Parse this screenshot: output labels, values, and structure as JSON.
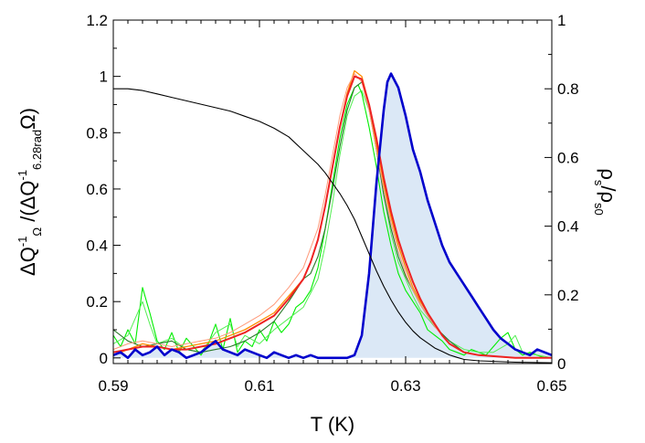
{
  "chart_data": {
    "type": "line",
    "xlabel": "T (K)",
    "ylabel": {
      "parts": [
        {
          "text": "ΔQ",
          "shift": "base"
        },
        {
          "text": "-1",
          "shift": "super"
        },
        {
          "text": "Ω",
          "shift": "sub"
        },
        {
          "text": " /(ΔQ",
          "shift": "base"
        },
        {
          "text": "-1",
          "shift": "super"
        },
        {
          "text": "6.28rad",
          "shift": "sub"
        },
        {
          "text": "Ω)",
          "shift": "base"
        }
      ]
    },
    "y2label": {
      "parts": [
        {
          "text": "ρ",
          "shift": "base"
        },
        {
          "text": "s",
          "shift": "sub"
        },
        {
          "text": "/ρ",
          "shift": "base"
        },
        {
          "text": "s0",
          "shift": "sub"
        }
      ]
    },
    "xlim": [
      0.59,
      0.65
    ],
    "ylim": [
      -0.02,
      1.2
    ],
    "y2lim": [
      0,
      1
    ],
    "xticks": [
      "0.59",
      "0.61",
      "0.63",
      "0.65"
    ],
    "yticks": [
      "0",
      "0.2",
      "0.4",
      "0.6",
      "0.8",
      "1",
      "1.2"
    ],
    "y2ticks": [
      "0",
      "0.2",
      "0.4",
      "0.6",
      "0.8",
      "1"
    ],
    "grid": false,
    "legend": "none",
    "series": [
      {
        "color": "#00ee00",
        "width": 1.1,
        "x": [
          0.59,
          0.591,
          0.592,
          0.593,
          0.594,
          0.595,
          0.596,
          0.597,
          0.598,
          0.599,
          0.6,
          0.601,
          0.602,
          0.603,
          0.604,
          0.605,
          0.606,
          0.607,
          0.608,
          0.609,
          0.61,
          0.611,
          0.612,
          0.613,
          0.614,
          0.615,
          0.616,
          0.617,
          0.618,
          0.619,
          0.62,
          0.621,
          0.622,
          0.623,
          0.6235,
          0.624,
          0.625,
          0.626,
          0.627,
          0.628,
          0.629,
          0.63,
          0.631,
          0.632,
          0.633,
          0.634,
          0.635,
          0.636,
          0.637,
          0.638,
          0.639,
          0.64,
          0.641,
          0.642,
          0.643,
          0.644,
          0.645,
          0.646,
          0.647,
          0.648,
          0.649,
          0.65
        ],
        "y": [
          0.08,
          0.04,
          0.1,
          0.05,
          0.25,
          0.16,
          0.06,
          0.03,
          0.09,
          0.02,
          0.07,
          0.04,
          0.01,
          0.05,
          0.12,
          0.03,
          0.14,
          0.02,
          0.06,
          0.04,
          0.1,
          0.06,
          0.13,
          0.09,
          0.12,
          0.18,
          0.2,
          0.24,
          0.32,
          0.46,
          0.62,
          0.78,
          0.9,
          0.96,
          0.97,
          0.94,
          0.82,
          0.68,
          0.52,
          0.4,
          0.3,
          0.24,
          0.2,
          0.16,
          0.1,
          0.08,
          0.06,
          0.03,
          0.02,
          0.01,
          0.03,
          0.02,
          0.01,
          0.04,
          0.07,
          0.09,
          0.03,
          0.01,
          0.02,
          0.01,
          0.0,
          0.0
        ]
      },
      {
        "color": "#55ee55",
        "width": 1.0,
        "x": [
          0.59,
          0.592,
          0.594,
          0.595,
          0.596,
          0.598,
          0.6,
          0.602,
          0.604,
          0.606,
          0.607,
          0.608,
          0.61,
          0.612,
          0.614,
          0.616,
          0.618,
          0.619,
          0.62,
          0.621,
          0.622,
          0.623,
          0.624,
          0.625,
          0.626,
          0.627,
          0.628,
          0.629,
          0.63,
          0.631,
          0.632,
          0.633,
          0.634,
          0.636,
          0.638,
          0.64,
          0.642,
          0.644,
          0.645,
          0.646,
          0.648,
          0.65
        ],
        "y": [
          0.05,
          0.08,
          0.2,
          0.12,
          0.05,
          0.07,
          0.03,
          0.02,
          0.09,
          0.12,
          0.04,
          0.08,
          0.05,
          0.1,
          0.14,
          0.18,
          0.28,
          0.4,
          0.55,
          0.72,
          0.86,
          0.93,
          0.95,
          0.88,
          0.74,
          0.58,
          0.44,
          0.34,
          0.28,
          0.22,
          0.17,
          0.14,
          0.11,
          0.06,
          0.03,
          0.02,
          0.02,
          0.05,
          0.08,
          0.02,
          0.01,
          0.0
        ]
      },
      {
        "color": "#2a7a2a",
        "width": 1.1,
        "x": [
          0.59,
          0.592,
          0.594,
          0.596,
          0.598,
          0.6,
          0.602,
          0.604,
          0.606,
          0.608,
          0.61,
          0.612,
          0.614,
          0.615,
          0.616,
          0.617,
          0.618,
          0.619,
          0.62,
          0.621,
          0.622,
          0.623,
          0.624,
          0.625,
          0.626,
          0.627,
          0.628,
          0.629,
          0.63,
          0.631,
          0.632,
          0.633,
          0.634,
          0.636,
          0.638,
          0.64,
          0.645,
          0.65
        ],
        "y": [
          0.1,
          0.06,
          0.04,
          0.05,
          0.06,
          0.03,
          0.02,
          0.03,
          0.04,
          0.06,
          0.09,
          0.13,
          0.2,
          0.24,
          0.28,
          0.3,
          0.36,
          0.46,
          0.6,
          0.75,
          0.88,
          0.96,
          0.98,
          0.9,
          0.74,
          0.58,
          0.46,
          0.36,
          0.29,
          0.24,
          0.19,
          0.15,
          0.11,
          0.06,
          0.02,
          0.01,
          0.0,
          0.0
        ]
      },
      {
        "color": "#ff8c00",
        "width": 1.3,
        "x": [
          0.59,
          0.592,
          0.594,
          0.596,
          0.598,
          0.6,
          0.602,
          0.604,
          0.606,
          0.608,
          0.61,
          0.612,
          0.614,
          0.616,
          0.617,
          0.618,
          0.619,
          0.62,
          0.621,
          0.622,
          0.623,
          0.624,
          0.625,
          0.626,
          0.627,
          0.628,
          0.629,
          0.63,
          0.631,
          0.632,
          0.633,
          0.634,
          0.635,
          0.636,
          0.638,
          0.64,
          0.645,
          0.65
        ],
        "y": [
          0.01,
          0.03,
          0.05,
          0.04,
          0.03,
          0.04,
          0.05,
          0.06,
          0.08,
          0.1,
          0.13,
          0.16,
          0.22,
          0.28,
          0.34,
          0.42,
          0.54,
          0.68,
          0.82,
          0.94,
          1.02,
          1.0,
          0.9,
          0.76,
          0.62,
          0.5,
          0.4,
          0.32,
          0.25,
          0.2,
          0.16,
          0.12,
          0.08,
          0.05,
          0.02,
          0.01,
          0.0,
          0.0
        ]
      },
      {
        "color": "#ff9a7a",
        "width": 1.0,
        "x": [
          0.59,
          0.592,
          0.594,
          0.596,
          0.598,
          0.6,
          0.602,
          0.604,
          0.606,
          0.608,
          0.61,
          0.612,
          0.614,
          0.616,
          0.618,
          0.619,
          0.62,
          0.621,
          0.622,
          0.623,
          0.624,
          0.625,
          0.626,
          0.627,
          0.628,
          0.629,
          0.63,
          0.631,
          0.632,
          0.633,
          0.634,
          0.636,
          0.638,
          0.64,
          0.645,
          0.65
        ],
        "y": [
          0.03,
          0.05,
          0.06,
          0.05,
          0.04,
          0.05,
          0.06,
          0.07,
          0.09,
          0.12,
          0.15,
          0.19,
          0.25,
          0.32,
          0.46,
          0.58,
          0.72,
          0.86,
          0.96,
          1.01,
          0.98,
          0.88,
          0.74,
          0.6,
          0.48,
          0.38,
          0.3,
          0.24,
          0.19,
          0.15,
          0.11,
          0.05,
          0.02,
          0.01,
          0.0,
          0.0
        ]
      },
      {
        "color": "#ee2222",
        "width": 2.0,
        "x": [
          0.59,
          0.592,
          0.594,
          0.596,
          0.598,
          0.6,
          0.602,
          0.604,
          0.606,
          0.608,
          0.61,
          0.612,
          0.614,
          0.616,
          0.617,
          0.618,
          0.619,
          0.62,
          0.621,
          0.622,
          0.623,
          0.624,
          0.625,
          0.626,
          0.627,
          0.628,
          0.629,
          0.63,
          0.631,
          0.632,
          0.633,
          0.634,
          0.635,
          0.636,
          0.638,
          0.64,
          0.645,
          0.65
        ],
        "y": [
          0.02,
          0.03,
          0.04,
          0.04,
          0.03,
          0.03,
          0.04,
          0.05,
          0.07,
          0.09,
          0.12,
          0.15,
          0.21,
          0.28,
          0.34,
          0.42,
          0.54,
          0.68,
          0.82,
          0.93,
          1.0,
          0.99,
          0.9,
          0.78,
          0.64,
          0.52,
          0.42,
          0.34,
          0.27,
          0.21,
          0.16,
          0.12,
          0.08,
          0.05,
          0.02,
          0.01,
          0.0,
          0.0
        ]
      },
      {
        "color": "#0000cc",
        "width": 2.6,
        "fill": "#dbe8f6",
        "x": [
          0.59,
          0.591,
          0.592,
          0.593,
          0.594,
          0.595,
          0.596,
          0.597,
          0.598,
          0.599,
          0.6,
          0.601,
          0.602,
          0.603,
          0.604,
          0.605,
          0.606,
          0.607,
          0.608,
          0.609,
          0.61,
          0.611,
          0.612,
          0.613,
          0.614,
          0.615,
          0.616,
          0.617,
          0.618,
          0.619,
          0.62,
          0.621,
          0.622,
          0.623,
          0.624,
          0.625,
          0.626,
          0.627,
          0.6275,
          0.628,
          0.629,
          0.63,
          0.631,
          0.632,
          0.633,
          0.634,
          0.635,
          0.636,
          0.637,
          0.638,
          0.639,
          0.64,
          0.641,
          0.642,
          0.643,
          0.644,
          0.645,
          0.646,
          0.647,
          0.648,
          0.649,
          0.65
        ],
        "y": [
          0.01,
          0.02,
          0.0,
          0.03,
          0.01,
          0.02,
          0.04,
          0.01,
          0.03,
          0.02,
          0.0,
          0.01,
          0.02,
          0.04,
          0.06,
          0.03,
          0.02,
          0.01,
          0.03,
          0.02,
          0.01,
          0.0,
          0.02,
          0.01,
          0.0,
          0.01,
          0.0,
          0.01,
          0.0,
          0.0,
          0.0,
          0.0,
          0.0,
          0.01,
          0.08,
          0.3,
          0.62,
          0.88,
          0.98,
          1.01,
          0.96,
          0.86,
          0.74,
          0.66,
          0.56,
          0.48,
          0.4,
          0.34,
          0.3,
          0.26,
          0.22,
          0.18,
          0.14,
          0.1,
          0.07,
          0.05,
          0.03,
          0.02,
          0.01,
          0.03,
          0.02,
          0.01
        ]
      },
      {
        "color": "#000000",
        "width": 1.1,
        "axis": "right",
        "x": [
          0.59,
          0.592,
          0.594,
          0.596,
          0.598,
          0.6,
          0.602,
          0.604,
          0.606,
          0.608,
          0.61,
          0.612,
          0.614,
          0.616,
          0.618,
          0.619,
          0.62,
          0.621,
          0.622,
          0.623,
          0.624,
          0.625,
          0.626,
          0.627,
          0.628,
          0.629,
          0.63,
          0.631,
          0.632,
          0.633,
          0.634,
          0.635,
          0.636,
          0.637,
          0.638,
          0.64,
          0.645,
          0.65
        ],
        "y": [
          0.8,
          0.8,
          0.795,
          0.785,
          0.775,
          0.765,
          0.755,
          0.745,
          0.735,
          0.72,
          0.705,
          0.685,
          0.66,
          0.62,
          0.58,
          0.555,
          0.525,
          0.495,
          0.46,
          0.42,
          0.37,
          0.32,
          0.27,
          0.225,
          0.185,
          0.15,
          0.12,
          0.095,
          0.075,
          0.06,
          0.045,
          0.035,
          0.025,
          0.018,
          0.012,
          0.008,
          0.004,
          0.002
        ]
      }
    ]
  }
}
